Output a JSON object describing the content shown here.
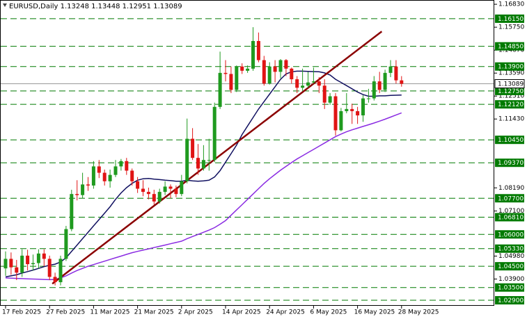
{
  "chart_data": {
    "type": "candlestick",
    "title": "EURUSD,Daily  1.13248 1.13448 1.12951 1.13089",
    "categories": [
      "17 Feb 2025",
      null,
      null,
      null,
      null,
      null,
      null,
      null,
      "27 Feb 2025",
      null,
      null,
      null,
      null,
      null,
      null,
      null,
      "11 Mar 2025",
      null,
      null,
      null,
      null,
      null,
      null,
      null,
      "21 Mar 2025",
      null,
      null,
      null,
      null,
      null,
      null,
      null,
      "2 Apr 2025",
      null,
      null,
      null,
      null,
      null,
      null,
      null,
      "14 Apr 2025",
      null,
      null,
      null,
      null,
      null,
      null,
      null,
      "24 Apr 2025",
      null,
      null,
      null,
      null,
      null,
      null,
      null,
      "6 May 2025",
      null,
      null,
      null,
      null,
      null,
      null,
      null,
      "16 May 2025",
      null,
      null,
      null,
      null,
      null,
      null,
      null,
      "28 May 2025"
    ],
    "open": [
      1.044,
      1.0485,
      1.0445,
      1.042,
      1.05,
      1.046,
      1.0465,
      1.051,
      1.0485,
      1.04,
      1.0375,
      1.0485,
      1.0625,
      1.079,
      1.0785,
      1.0835,
      1.083,
      1.092,
      1.089,
      1.085,
      1.088,
      1.092,
      1.0945,
      1.09,
      1.085,
      1.0815,
      1.08,
      1.079,
      1.0755,
      1.08,
      1.0825,
      1.0815,
      1.079,
      1.085,
      1.105,
      1.096,
      1.091,
      1.095,
      1.095,
      1.12,
      1.136,
      1.1355,
      1.128,
      1.139,
      1.137,
      1.138,
      1.151,
      1.142,
      1.131,
      1.139,
      1.1365,
      1.142,
      1.138,
      1.133,
      1.129,
      1.13,
      1.1315,
      1.132,
      1.13,
      1.122,
      1.125,
      1.109,
      1.118,
      1.119,
      1.118,
      1.116,
      1.124,
      1.124,
      1.132,
      1.128,
      1.136,
      1.139,
      1.13248
    ],
    "high": [
      1.052,
      1.0515,
      1.048,
      1.053,
      1.0528,
      1.0505,
      1.053,
      1.053,
      1.05,
      1.042,
      1.05,
      1.064,
      1.081,
      1.0855,
      1.089,
      1.087,
      1.0945,
      1.095,
      1.0905,
      1.0905,
      1.095,
      1.0955,
      1.096,
      1.091,
      1.087,
      1.0855,
      1.082,
      1.081,
      1.0815,
      1.085,
      1.0835,
      1.083,
      1.088,
      1.1145,
      1.11,
      1.1025,
      1.102,
      1.105,
      1.122,
      1.146,
      1.142,
      1.139,
      1.1395,
      1.1405,
      1.1395,
      1.1575,
      1.155,
      1.144,
      1.141,
      1.142,
      1.1425,
      1.1425,
      1.1385,
      1.1345,
      1.138,
      1.1365,
      1.1385,
      1.134,
      1.133,
      1.1265,
      1.1265,
      1.1195,
      1.1265,
      1.1215,
      1.12,
      1.1255,
      1.1285,
      1.1345,
      1.1365,
      1.1375,
      1.142,
      1.142,
      1.13448
    ],
    "low": [
      1.0405,
      1.041,
      1.0385,
      1.04,
      1.043,
      1.043,
      1.044,
      1.045,
      1.0385,
      1.036,
      1.036,
      1.0475,
      1.0615,
      1.076,
      1.077,
      1.0805,
      1.0815,
      1.0865,
      1.083,
      1.082,
      1.087,
      1.09,
      1.088,
      1.083,
      1.0795,
      1.078,
      1.0765,
      1.074,
      1.0745,
      1.0785,
      1.077,
      1.0775,
      1.078,
      1.084,
      1.095,
      1.088,
      1.09,
      1.09,
      1.094,
      1.119,
      1.132,
      1.1265,
      1.127,
      1.1355,
      1.136,
      1.137,
      1.141,
      1.13,
      1.1305,
      1.1315,
      1.1335,
      1.1345,
      1.131,
      1.1265,
      1.1275,
      1.129,
      1.131,
      1.1265,
      1.119,
      1.121,
      1.1065,
      1.1085,
      1.117,
      1.112,
      1.112,
      1.113,
      1.122,
      1.123,
      1.1265,
      1.127,
      1.134,
      1.131,
      1.12951
    ],
    "close": [
      1.0485,
      1.0445,
      1.042,
      1.05,
      1.046,
      1.0465,
      1.051,
      1.0485,
      1.04,
      1.0375,
      1.0485,
      1.0625,
      1.079,
      1.0785,
      1.0835,
      1.083,
      1.092,
      1.089,
      1.085,
      1.088,
      1.092,
      1.0945,
      1.09,
      1.085,
      1.0815,
      1.08,
      1.079,
      1.0755,
      1.08,
      1.0825,
      1.0815,
      1.079,
      1.085,
      1.105,
      1.096,
      1.091,
      1.095,
      1.095,
      1.12,
      1.136,
      1.1355,
      1.128,
      1.139,
      1.137,
      1.138,
      1.151,
      1.142,
      1.131,
      1.139,
      1.1365,
      1.142,
      1.138,
      1.133,
      1.129,
      1.13,
      1.1315,
      1.132,
      1.13,
      1.122,
      1.125,
      1.109,
      1.118,
      1.119,
      1.118,
      1.116,
      1.124,
      1.124,
      1.132,
      1.128,
      1.136,
      1.139,
      1.1325,
      1.13089
    ],
    "colors": {
      "up": "#1f9a1f",
      "down": "#e01414"
    },
    "overlays": [
      {
        "color": "#101060",
        "values": [
          1.04,
          1.0405,
          1.041,
          1.0418,
          1.0425,
          1.0432,
          1.044,
          1.0448,
          1.0455,
          1.046,
          1.047,
          1.049,
          1.052,
          1.055,
          1.058,
          1.061,
          1.064,
          1.067,
          1.07,
          1.073,
          1.0765,
          1.0795,
          1.082,
          1.084,
          1.0855,
          1.0862,
          1.0863,
          1.086,
          1.0858,
          1.0855,
          1.0853,
          1.085,
          1.085,
          1.0855,
          1.0852,
          1.085,
          1.0852,
          1.0855,
          1.087,
          1.09,
          1.094,
          1.098,
          1.102,
          1.107,
          1.111,
          1.115,
          1.119,
          1.1225,
          1.126,
          1.1295,
          1.133,
          1.1355,
          1.1365,
          1.1368,
          1.1368,
          1.1367,
          1.1366,
          1.1365,
          1.136,
          1.135,
          1.133,
          1.1315,
          1.13,
          1.1285,
          1.127,
          1.1258,
          1.125,
          1.125,
          1.1252,
          1.1252,
          1.1254,
          1.1255,
          1.1256
        ]
      },
      {
        "color": "#8a2be2",
        "values": [
          1.0395,
          1.0394,
          1.0393,
          1.0392,
          1.0391,
          1.039,
          1.0389,
          1.0388,
          1.0387,
          1.0388,
          1.0395,
          1.0405,
          1.0418,
          1.043,
          1.044,
          1.045,
          1.0458,
          1.0466,
          1.0474,
          1.0482,
          1.049,
          1.0498,
          1.0506,
          1.0514,
          1.052,
          1.0526,
          1.0532,
          1.0538,
          1.0544,
          1.055,
          1.0556,
          1.0562,
          1.0568,
          1.058,
          1.059,
          1.06,
          1.061,
          1.062,
          1.0632,
          1.0648,
          1.0665,
          1.069,
          1.0715,
          1.074,
          1.0765,
          1.079,
          1.0815,
          1.084,
          1.0862,
          1.0882,
          1.0902,
          1.092,
          1.0938,
          1.0955,
          1.097,
          1.0985,
          1.1,
          1.1015,
          1.103,
          1.1045,
          1.106,
          1.1072,
          1.1083,
          1.1092,
          1.11,
          1.1108,
          1.1116,
          1.1124,
          1.1133,
          1.1142,
          1.1152,
          1.1162,
          1.1172
        ]
      }
    ],
    "trendline": {
      "color": "#8b0000",
      "x": [
        8.5,
        68.4
      ],
      "y": [
        1.0368,
        1.1555
      ]
    },
    "levels": [
      {
        "value": 1.1615,
        "label": "1.16150"
      },
      {
        "value": 1.1485,
        "label": "1.14850"
      },
      {
        "value": 1.139,
        "label": "1.13900"
      },
      {
        "value": 1.1275,
        "label": "1.12750"
      },
      {
        "value": 1.1212,
        "label": "1.12120"
      },
      {
        "value": 1.1045,
        "label": "1.10450"
      },
      {
        "value": 1.0937,
        "label": "1.09370"
      },
      {
        "value": 1.077,
        "label": "1.07700"
      },
      {
        "value": 1.0681,
        "label": "1.06810"
      },
      {
        "value": 1.06,
        "label": "1.06000"
      },
      {
        "value": 1.0533,
        "label": "1.05330"
      },
      {
        "value": 1.045,
        "label": "1.04500"
      },
      {
        "value": 1.035,
        "label": "1.03500"
      },
      {
        "value": 1.029,
        "label": "1.02900"
      }
    ],
    "level_color": "#007a00",
    "last_price": 1.13089,
    "ylim": [
      1.0264,
      1.1703
    ],
    "yticks": [
      {
        "value": 1.1683,
        "label": "1.16830"
      },
      {
        "value": 1.1575,
        "label": "1.15750"
      },
      {
        "value": 1.1467,
        "label": "1.14670"
      },
      {
        "value": 1.1359,
        "label": "1.13590"
      },
      {
        "value": 1.1251,
        "label": "1.12510"
      },
      {
        "value": 1.1143,
        "label": "1.11430"
      },
      {
        "value": 1.0819,
        "label": "1.08190"
      },
      {
        "value": 1.071,
        "label": "1.07100"
      },
      {
        "value": 1.0498,
        "label": "1.04980"
      },
      {
        "value": 1.039,
        "label": "1.03900"
      }
    ]
  }
}
